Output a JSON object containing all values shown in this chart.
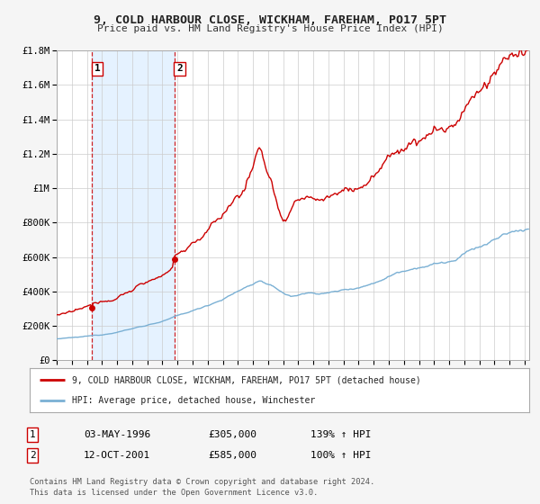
{
  "title": "9, COLD HARBOUR CLOSE, WICKHAM, FAREHAM, PO17 5PT",
  "subtitle": "Price paid vs. HM Land Registry's House Price Index (HPI)",
  "background_color": "#f5f5f5",
  "chart_bg": "#ffffff",
  "grid_color": "#cccccc",
  "red_line_color": "#cc0000",
  "blue_line_color": "#7ab0d4",
  "shade_color": "#ddeeff",
  "dashed_color": "#cc0000",
  "ylim": [
    0,
    1800000
  ],
  "xlim_start": 1994.0,
  "xlim_end": 2025.3,
  "purchase1_x": 1996.34,
  "purchase1_y": 305000,
  "purchase1_label": "1",
  "purchase1_date": "03-MAY-1996",
  "purchase1_price": "£305,000",
  "purchase1_hpi": "139% ↑ HPI",
  "purchase2_x": 2001.79,
  "purchase2_y": 585000,
  "purchase2_label": "2",
  "purchase2_date": "12-OCT-2001",
  "purchase2_price": "£585,000",
  "purchase2_hpi": "100% ↑ HPI",
  "legend_line1": "9, COLD HARBOUR CLOSE, WICKHAM, FAREHAM, PO17 5PT (detached house)",
  "legend_line2": "HPI: Average price, detached house, Winchester",
  "footer1": "Contains HM Land Registry data © Crown copyright and database right 2024.",
  "footer2": "This data is licensed under the Open Government Licence v3.0.",
  "ytick_labels": [
    "£0",
    "£200K",
    "£400K",
    "£600K",
    "£800K",
    "£1M",
    "£1.2M",
    "£1.4M",
    "£1.6M",
    "£1.8M"
  ],
  "ytick_values": [
    0,
    200000,
    400000,
    600000,
    800000,
    1000000,
    1200000,
    1400000,
    1600000,
    1800000
  ]
}
